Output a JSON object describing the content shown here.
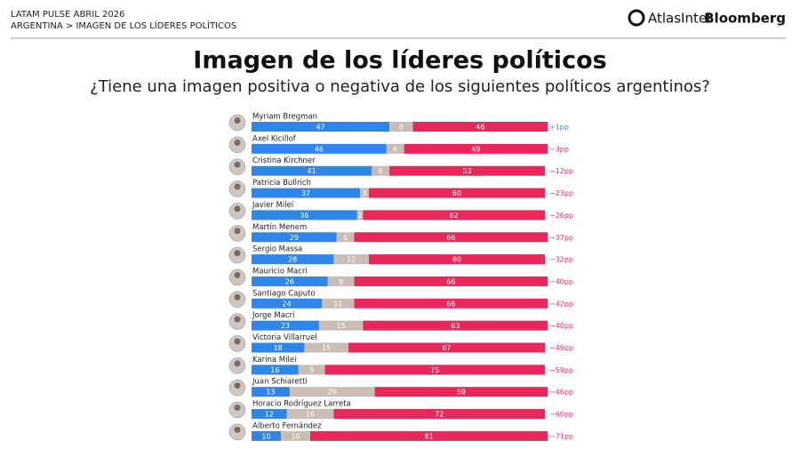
{
  "header": {
    "kicker": "LATAM PULSE ABRIL 2026",
    "breadcrumb": "ARGENTINA > IMAGEN DE LOS LÍDERES POLÍTICOS",
    "logo_1": "AtlasIntel",
    "logo_2": "Bloomberg"
  },
  "chart_data": {
    "type": "stacked-bar-horizontal",
    "title": "Imagen de los líderes políticos",
    "subtitle": "¿Tiene una imagen positiva o negativa de los siguientes políticos argentinos?",
    "categories": [
      "Myriam Bregman",
      "Axel Kicillof",
      "Cristina Kirchner",
      "Patricia Bullrich",
      "Javier Milei",
      "Martín Menem",
      "Sergio Massa",
      "Mauricio Macri",
      "Santiago Caputo",
      "Jorge Macri",
      "Victoria Villarruel",
      "Karina Milei",
      "Juan Schiaretti",
      "Horacio Rodríguez Larreta",
      "Alberto Fernández"
    ],
    "series": [
      {
        "color": "#2f86e8",
        "values": [
          47,
          46,
          41,
          37,
          36,
          29,
          28,
          26,
          24,
          23,
          18,
          16,
          13,
          12,
          10
        ]
      },
      {
        "color": "#c9bdb6",
        "values": [
          8,
          6,
          6,
          3,
          2,
          6,
          12,
          9,
          11,
          15,
          15,
          9,
          29,
          16,
          10
        ]
      },
      {
        "color": "#e8285b",
        "values": [
          46,
          49,
          53,
          60,
          62,
          66,
          60,
          66,
          66,
          63,
          67,
          75,
          59,
          72,
          81
        ]
      }
    ],
    "net": {
      "values": [
        1,
        -3,
        -12,
        -23,
        -26,
        -37,
        -32,
        -40,
        -42,
        -40,
        -49,
        -59,
        -46,
        -60,
        -71
      ],
      "value_labels": [
        "+1pp",
        "−3pp",
        "−12pp",
        "−23pp",
        "−26pp",
        "−37pp",
        "−32pp",
        "−40pp",
        "−42pp",
        "−40pp",
        "−49pp",
        "−59pp",
        "−46pp",
        "−60pp",
        "−71pp"
      ],
      "positive_color": "#2f86e8",
      "negative_color": "#e8285b"
    },
    "xlim": [
      0,
      100
    ]
  }
}
